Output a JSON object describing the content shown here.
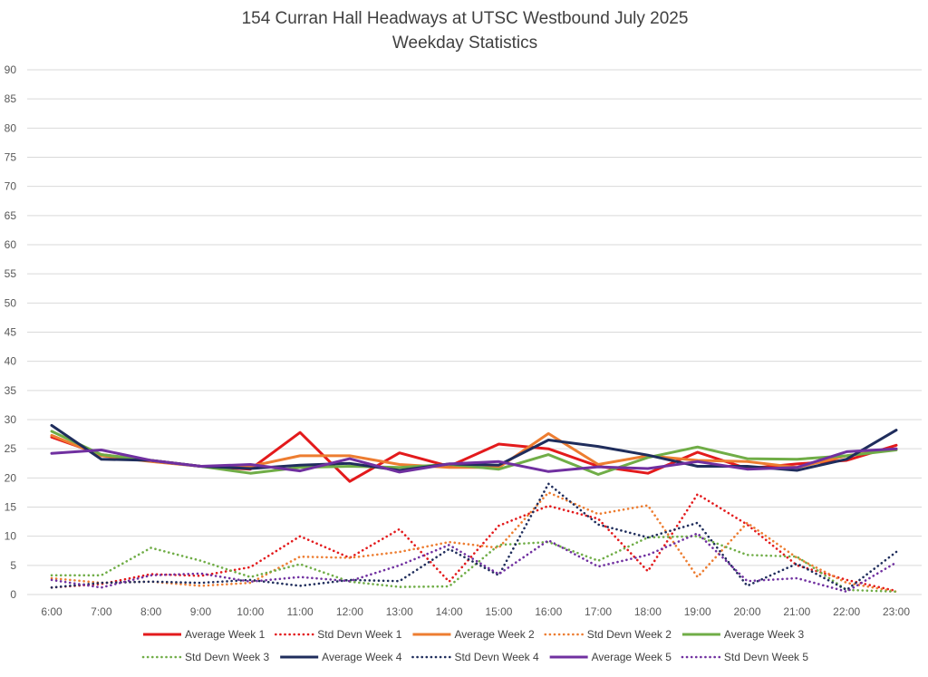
{
  "chart_data": {
    "type": "line",
    "title": "154 Curran Hall Headways at UTSC Westbound July 2025",
    "subtitle": "Weekday Statistics",
    "xlabel": "",
    "ylabel": "",
    "ylim": [
      0,
      90
    ],
    "yticks": [
      0,
      5,
      10,
      15,
      20,
      25,
      30,
      35,
      40,
      45,
      50,
      55,
      60,
      65,
      70,
      75,
      80,
      85,
      90
    ],
    "grid": true,
    "legend_position": "bottom",
    "categories": [
      "6:00",
      "7:00",
      "8:00",
      "9:00",
      "10:00",
      "11:00",
      "12:00",
      "13:00",
      "14:00",
      "15:00",
      "16:00",
      "17:00",
      "18:00",
      "19:00",
      "20:00",
      "21:00",
      "22:00",
      "23:00"
    ],
    "series": [
      {
        "name": "Average Week 1",
        "color": "#e31a1c",
        "style": "solid",
        "values": [
          27.0,
          24.0,
          23.0,
          22.0,
          21.5,
          27.8,
          19.4,
          24.3,
          22.0,
          25.8,
          25.0,
          22.0,
          20.8,
          24.4,
          21.6,
          22.4,
          23.0,
          25.6
        ]
      },
      {
        "name": "Std Devn Week 1",
        "color": "#e31a1c",
        "style": "dotted",
        "values": [
          1.2,
          1.8,
          3.5,
          3.2,
          4.7,
          10.0,
          6.3,
          11.2,
          2.2,
          11.8,
          15.2,
          13.0,
          4.0,
          17.2,
          12.0,
          5.0,
          2.5,
          0.6
        ]
      },
      {
        "name": "Average Week 2",
        "color": "#ed7d31",
        "style": "solid",
        "values": [
          27.3,
          23.8,
          22.8,
          22.0,
          22.0,
          23.8,
          23.8,
          22.3,
          21.8,
          21.8,
          27.6,
          22.3,
          23.8,
          23.0,
          22.8,
          21.8,
          23.8,
          25.0
        ]
      },
      {
        "name": "Std Devn Week 2",
        "color": "#ed7d31",
        "style": "dotted",
        "values": [
          2.8,
          2.0,
          2.2,
          1.5,
          2.0,
          6.5,
          6.3,
          7.3,
          9.0,
          8.0,
          17.5,
          13.8,
          15.3,
          3.0,
          12.3,
          6.3,
          2.0,
          0.5
        ]
      },
      {
        "name": "Average Week 3",
        "color": "#70ad47",
        "style": "solid",
        "values": [
          28.0,
          24.0,
          23.0,
          22.0,
          20.8,
          21.8,
          22.0,
          21.8,
          22.3,
          21.5,
          24.0,
          20.6,
          23.5,
          25.3,
          23.3,
          23.2,
          23.8,
          24.8
        ]
      },
      {
        "name": "Std Devn Week 3",
        "color": "#70ad47",
        "style": "dotted",
        "values": [
          3.3,
          3.3,
          8.0,
          5.8,
          3.0,
          5.2,
          2.2,
          1.3,
          1.4,
          8.5,
          9.0,
          5.8,
          9.8,
          10.0,
          6.8,
          6.5,
          0.8,
          0.5
        ]
      },
      {
        "name": "Average Week 4",
        "color": "#1f2d5c",
        "style": "solid",
        "values": [
          29.0,
          23.2,
          23.0,
          22.0,
          21.6,
          22.2,
          22.5,
          21.3,
          22.4,
          22.2,
          26.5,
          25.4,
          23.9,
          22.0,
          22.0,
          21.3,
          23.2,
          28.2
        ]
      },
      {
        "name": "Std Devn Week 4",
        "color": "#1f2d5c",
        "style": "dotted",
        "values": [
          1.2,
          2.0,
          2.2,
          2.0,
          2.5,
          1.5,
          2.5,
          2.3,
          7.8,
          3.3,
          19.0,
          12.0,
          9.8,
          12.3,
          1.5,
          5.3,
          0.8,
          7.3
        ]
      },
      {
        "name": "Average Week 5",
        "color": "#7030a0",
        "style": "solid",
        "values": [
          24.2,
          24.8,
          23.0,
          22.0,
          22.3,
          21.2,
          23.3,
          21.0,
          22.4,
          22.8,
          21.1,
          21.9,
          21.6,
          22.8,
          21.5,
          21.8,
          24.5,
          25.0
        ]
      },
      {
        "name": "Std Devn Week 5",
        "color": "#7030a0",
        "style": "dotted",
        "values": [
          2.5,
          1.2,
          3.3,
          3.6,
          2.2,
          3.0,
          2.3,
          5.0,
          8.5,
          3.5,
          9.3,
          4.8,
          6.8,
          10.5,
          2.3,
          2.8,
          0.5,
          5.5
        ]
      }
    ]
  }
}
